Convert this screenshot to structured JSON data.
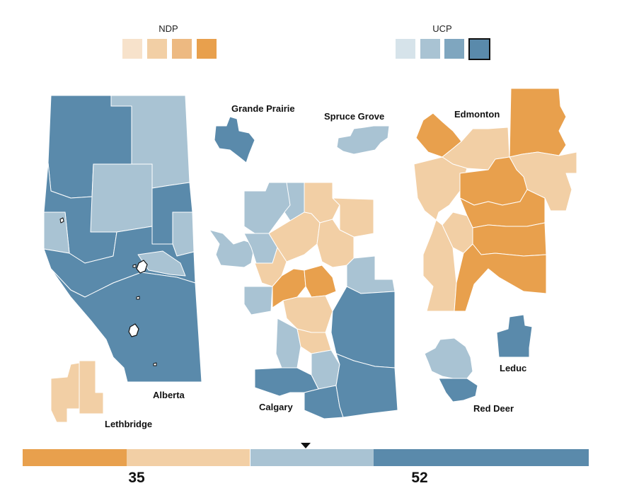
{
  "colors": {
    "ndp": [
      "#f7e2cb",
      "#f2cfa5",
      "#edb981",
      "#e8a04d"
    ],
    "ucp": [
      "#d6e3ea",
      "#a9c3d3",
      "#7fa6bf",
      "#5a8aab"
    ]
  },
  "legend": {
    "ndp_title": "NDP",
    "ucp_title": "UCP",
    "selected_ucp_level": 4
  },
  "regions": {
    "alberta": "Alberta",
    "lethbridge": "Lethbridge",
    "grande_prairie": "Grande Prairie",
    "spruce_grove": "Spruce Grove",
    "edmonton": "Edmonton",
    "calgary": "Calgary",
    "red_deer": "Red Deer",
    "leduc": "Leduc"
  },
  "seats": {
    "ndp": 35,
    "ucp": 52,
    "ndp_label": "35",
    "ucp_label": "52",
    "bands": [
      "#e8a04d",
      "#f2cfa5",
      "#a9c3d3",
      "#5a8aab"
    ],
    "band_fractions": [
      0.184,
      0.218,
      0.218,
      0.38
    ],
    "majority_marker": 0.5
  }
}
